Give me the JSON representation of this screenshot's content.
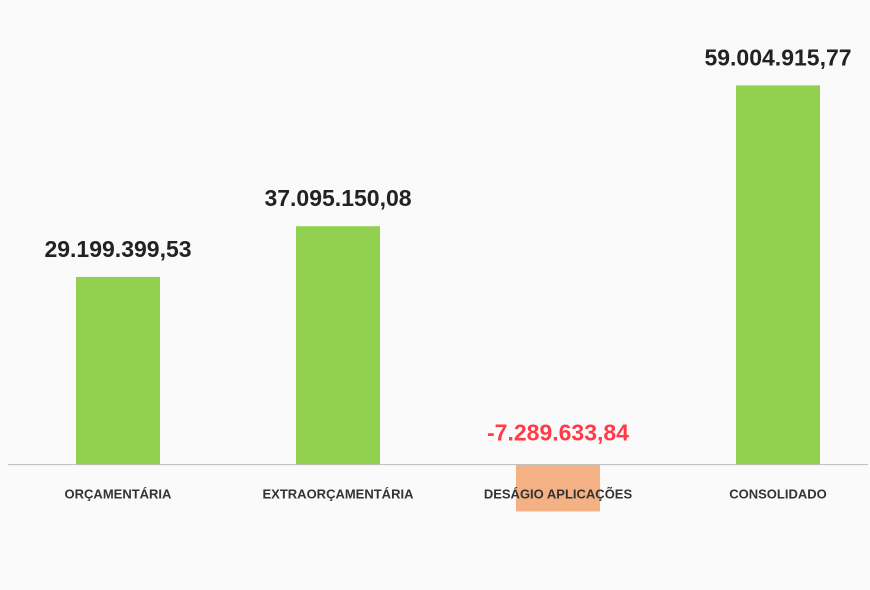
{
  "chart_data": {
    "type": "bar",
    "categories": [
      "ORÇAMENTÁRIA",
      "EXTRAORÇAMENTÁRIA",
      "DESÁGIO APLICAÇÕES",
      "CONSOLIDADO"
    ],
    "values": [
      29199399.53,
      37095150.08,
      -7289633.84,
      59004915.77
    ],
    "value_labels": [
      "29.199.399,53",
      "37.095.150,08",
      "-7.289.633,84",
      "59.004.915,77"
    ],
    "colors": [
      "#92d050",
      "#92d050",
      "#f4b183",
      "#92d050"
    ],
    "label_colors": [
      "#222222",
      "#222222",
      "#ff3b4a",
      "#222222"
    ],
    "ylim": [
      -8000000,
      60000000
    ]
  }
}
